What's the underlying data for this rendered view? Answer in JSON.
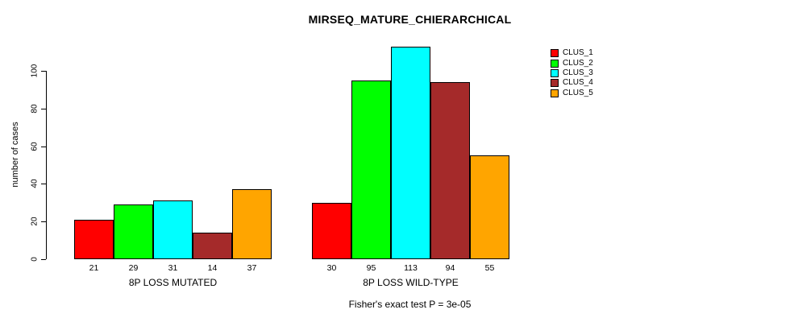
{
  "title": "MIRSEQ_MATURE_CHIERARCHICAL",
  "footnote": "Fisher's exact test P = 3e-05",
  "colors": {
    "bar_red": "#FF0000",
    "bar_green": "#00FF00",
    "bar_cyan": "#00FFFF",
    "bar_brown": "#A52A2A",
    "bar_orange": "#FFA500",
    "axis": "#000000",
    "background": "#FFFFFF"
  },
  "chart_data": {
    "type": "bar",
    "title": "MIRSEQ_MATURE_CHIERARCHICAL",
    "xlabel": "",
    "ylabel": "number of cases",
    "ylim": [
      0,
      113
    ],
    "yticks": [
      0,
      20,
      40,
      60,
      80,
      100
    ],
    "grid": false,
    "legend_position": "right",
    "series": [
      {
        "name": "CLUS_1",
        "color": "#FF0000"
      },
      {
        "name": "CLUS_2",
        "color": "#00FF00"
      },
      {
        "name": "CLUS_3",
        "color": "#00FFFF"
      },
      {
        "name": "CLUS_4",
        "color": "#A52A2A"
      },
      {
        "name": "CLUS_5",
        "color": "#FFA500"
      }
    ],
    "groups": [
      {
        "label": "8P LOSS MUTATED",
        "values": [
          21,
          29,
          31,
          14,
          37
        ]
      },
      {
        "label": "8P LOSS WILD-TYPE",
        "values": [
          30,
          95,
          113,
          94,
          55
        ]
      }
    ],
    "bar_value_labels_shown": true,
    "footnote": "Fisher's exact test P = 3e-05"
  }
}
